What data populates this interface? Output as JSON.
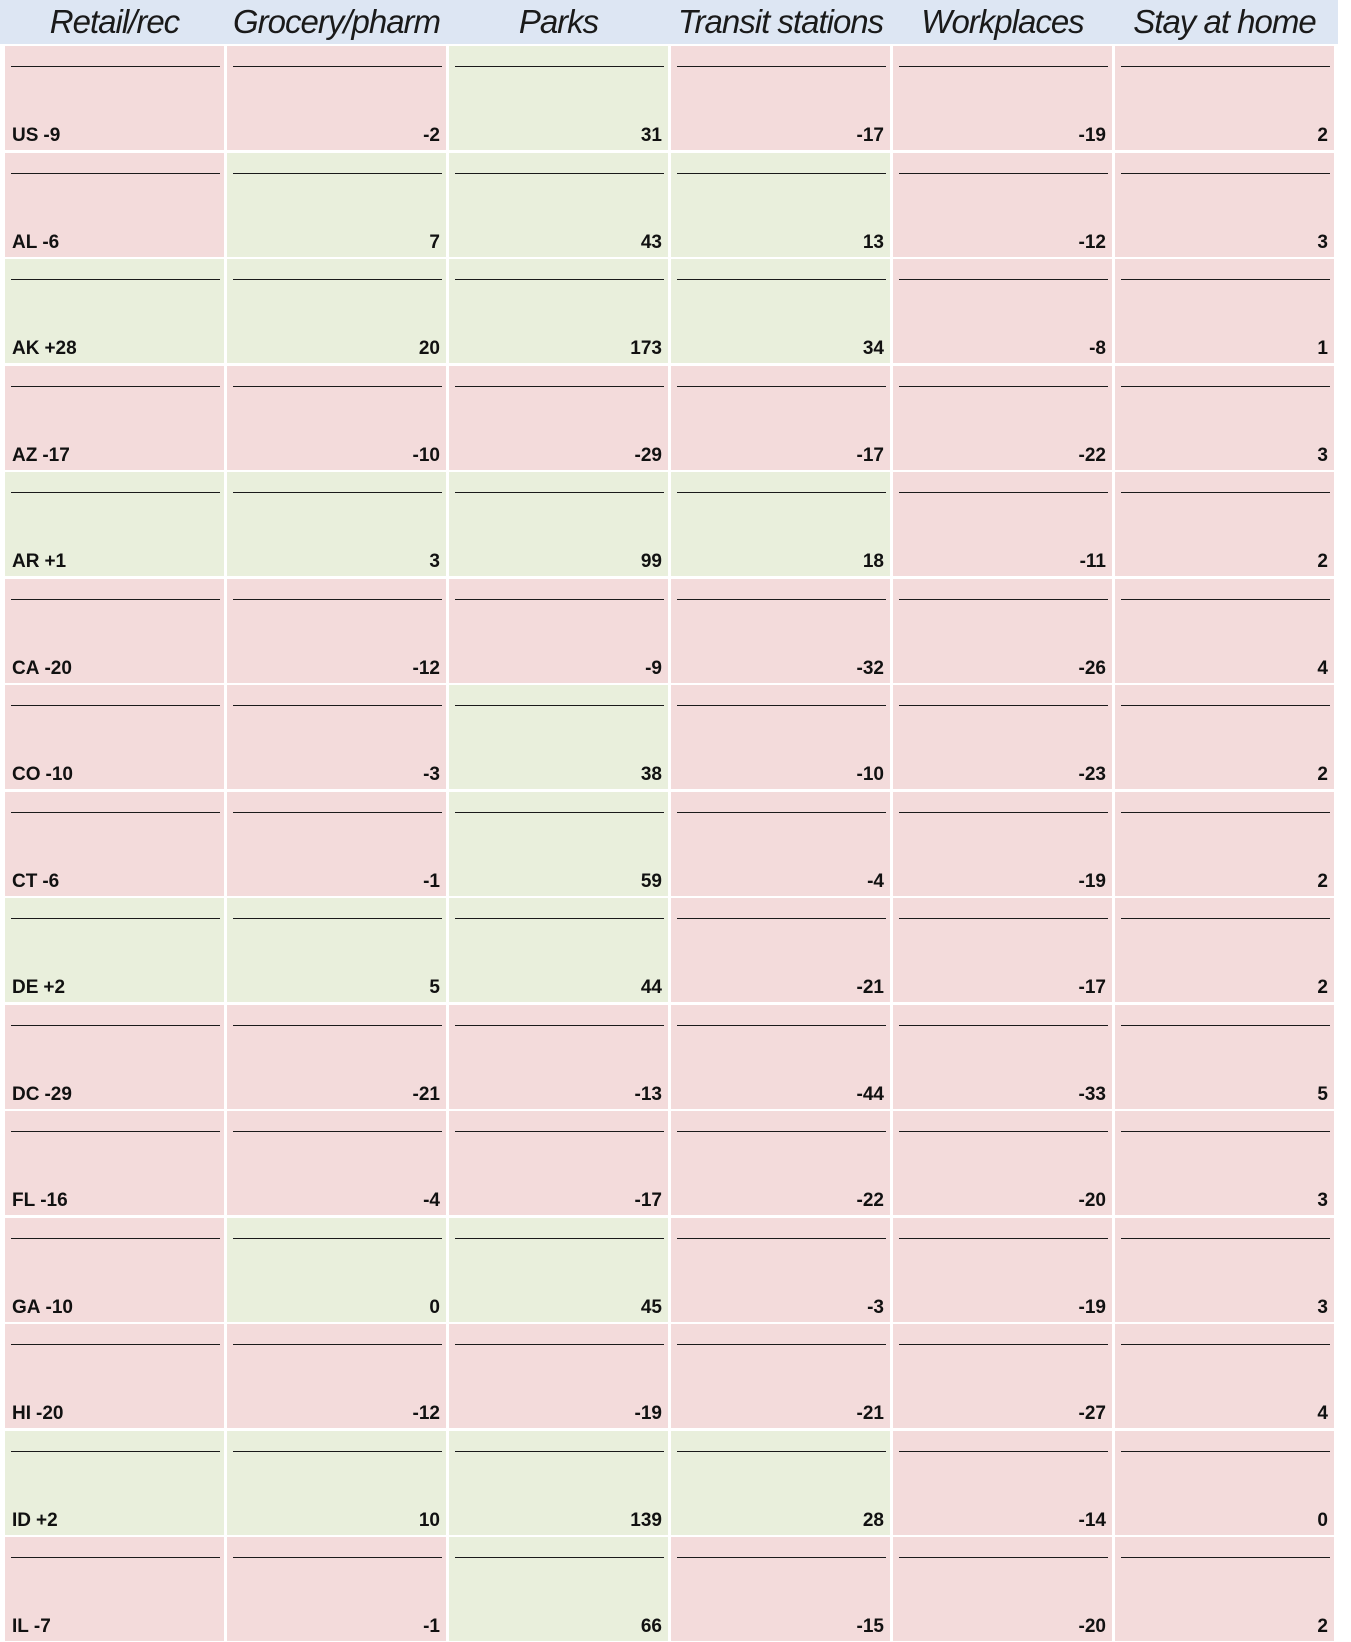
{
  "header": [
    "Retail/rec",
    "Grocery/pharm",
    "Parks",
    "Transit stations",
    "Workplaces",
    "Stay at home"
  ],
  "rows": [
    {
      "label": "US",
      "cells": [
        "-9",
        "-2",
        "31",
        "-17",
        "-19",
        "2"
      ],
      "fills": [
        "#f3dbdb",
        "#f3dbdb",
        "#e9efdc",
        "#f3dbdb",
        "#f3dbdb",
        "#f3dbdb"
      ]
    },
    {
      "label": "AL",
      "cells": [
        "-6",
        "7",
        "43",
        "13",
        "-12",
        "3"
      ],
      "fills": [
        "#f3dbdb",
        "#e9efdc",
        "#e9efdc",
        "#e9efdc",
        "#f3dbdb",
        "#f3dbdb"
      ]
    },
    {
      "label": "AK",
      "cells": [
        "+28",
        "20",
        "173",
        "34",
        "-8",
        "1"
      ],
      "fills": [
        "#e9efdc",
        "#e9efdc",
        "#e9efdc",
        "#e9efdc",
        "#f3dbdb",
        "#f3dbdb"
      ]
    },
    {
      "label": "AZ",
      "cells": [
        "-17",
        "-10",
        "-29",
        "-17",
        "-22",
        "3"
      ],
      "fills": [
        "#f3dbdb",
        "#f3dbdb",
        "#f3dbdb",
        "#f3dbdb",
        "#f3dbdb",
        "#f3dbdb"
      ]
    },
    {
      "label": "AR",
      "cells": [
        "+1",
        "3",
        "99",
        "18",
        "-11",
        "2"
      ],
      "fills": [
        "#e9efdc",
        "#e9efdc",
        "#e9efdc",
        "#e9efdc",
        "#f3dbdb",
        "#f3dbdb"
      ]
    },
    {
      "label": "CA",
      "cells": [
        "-20",
        "-12",
        "-9",
        "-32",
        "-26",
        "4"
      ],
      "fills": [
        "#f3dbdb",
        "#f3dbdb",
        "#f3dbdb",
        "#f3dbdb",
        "#f3dbdb",
        "#f3dbdb"
      ]
    },
    {
      "label": "CO",
      "cells": [
        "-10",
        "-3",
        "38",
        "-10",
        "-23",
        "2"
      ],
      "fills": [
        "#f3dbdb",
        "#f3dbdb",
        "#e9efdc",
        "#f3dbdb",
        "#f3dbdb",
        "#f3dbdb"
      ]
    },
    {
      "label": "CT",
      "cells": [
        "-6",
        "-1",
        "59",
        "-4",
        "-19",
        "2"
      ],
      "fills": [
        "#f3dbdb",
        "#f3dbdb",
        "#e9efdc",
        "#f3dbdb",
        "#f3dbdb",
        "#f3dbdb"
      ]
    },
    {
      "label": "DE",
      "cells": [
        "+2",
        "5",
        "44",
        "-21",
        "-17",
        "2"
      ],
      "fills": [
        "#e9efdc",
        "#e9efdc",
        "#e9efdc",
        "#f3dbdb",
        "#f3dbdb",
        "#f3dbdb"
      ]
    },
    {
      "label": "DC",
      "cells": [
        "-29",
        "-21",
        "-13",
        "-44",
        "-33",
        "5"
      ],
      "fills": [
        "#f3dbdb",
        "#f3dbdb",
        "#f3dbdb",
        "#f3dbdb",
        "#f3dbdb",
        "#f3dbdb"
      ]
    },
    {
      "label": "FL",
      "cells": [
        "-16",
        "-4",
        "-17",
        "-22",
        "-20",
        "3"
      ],
      "fills": [
        "#f3dbdb",
        "#f3dbdb",
        "#f3dbdb",
        "#f3dbdb",
        "#f3dbdb",
        "#f3dbdb"
      ]
    },
    {
      "label": "GA",
      "cells": [
        "-10",
        "0",
        "45",
        "-3",
        "-19",
        "3"
      ],
      "fills": [
        "#f3dbdb",
        "#e9efdc",
        "#e9efdc",
        "#f3dbdb",
        "#f3dbdb",
        "#f3dbdb"
      ]
    },
    {
      "label": "HI",
      "cells": [
        "-20",
        "-12",
        "-19",
        "-21",
        "-27",
        "4"
      ],
      "fills": [
        "#f3dbdb",
        "#f3dbdb",
        "#f3dbdb",
        "#f3dbdb",
        "#f3dbdb",
        "#f3dbdb"
      ]
    },
    {
      "label": "ID",
      "cells": [
        "+2",
        "10",
        "139",
        "28",
        "-14",
        "0"
      ],
      "fills": [
        "#e9efdc",
        "#e9efdc",
        "#e9efdc",
        "#e9efdc",
        "#f3dbdb",
        "#f3dbdb"
      ]
    },
    {
      "label": "IL",
      "cells": [
        "-7",
        "-1",
        "66",
        "-15",
        "-20",
        "2"
      ],
      "fills": [
        "#f3dbdb",
        "#f3dbdb",
        "#e9efdc",
        "#f3dbdb",
        "#f3dbdb",
        "#f3dbdb"
      ]
    }
  ]
}
